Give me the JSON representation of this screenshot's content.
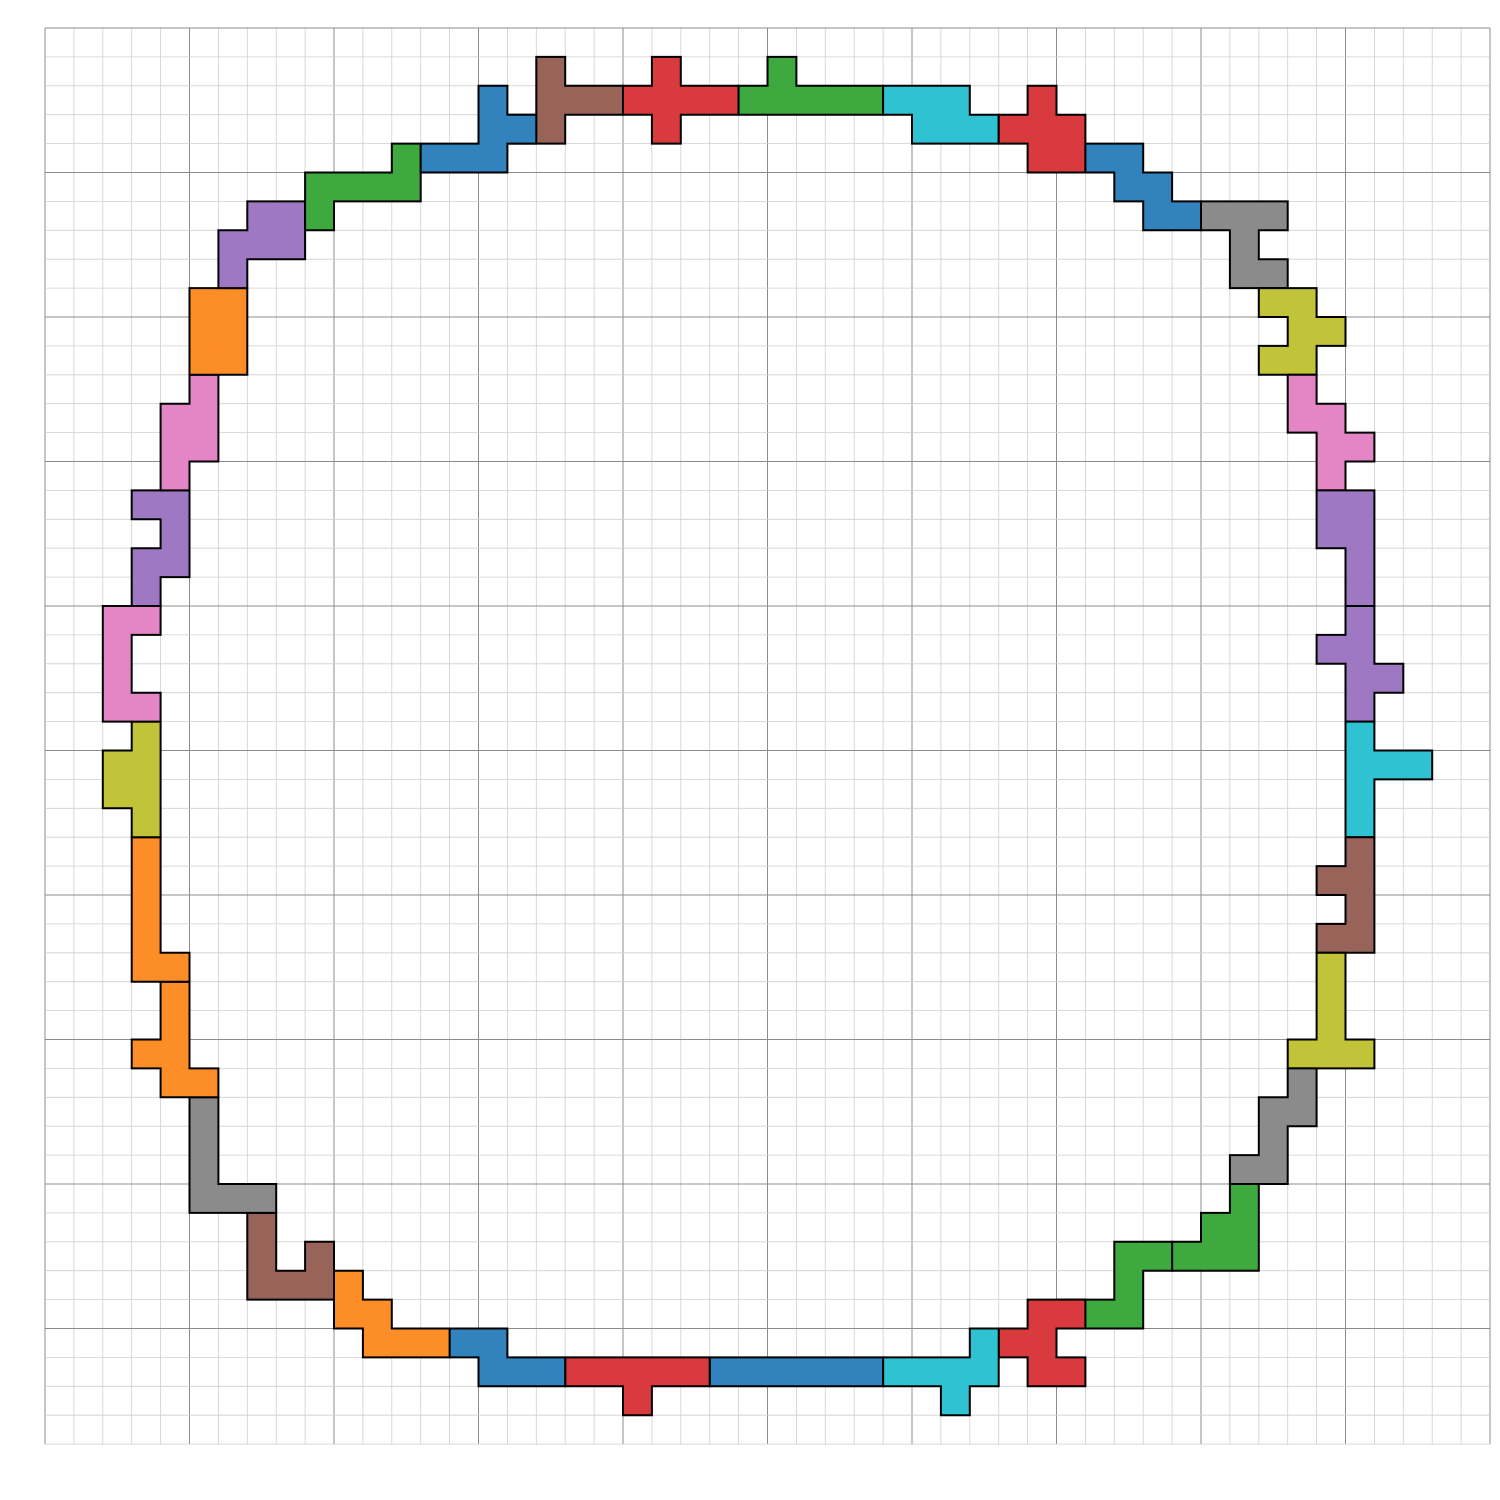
{
  "grid": {
    "cols": 50,
    "rows": 49,
    "major_every": 5
  },
  "colors": {
    "blue": "#3282bd",
    "orange": "#fd8d26",
    "green": "#3ea93e",
    "red": "#d83a3d",
    "purple": "#9e78c3",
    "brown": "#986459",
    "pink": "#e485c5",
    "gray": "#8b8b8b",
    "olive": "#c1c339",
    "cyan": "#2ec2d2"
  },
  "pieces": [
    {
      "color": "brown",
      "cells": [
        [
          17,
          1
        ],
        [
          17,
          2
        ],
        [
          16,
          3
        ],
        [
          17,
          3
        ],
        [
          18,
          2
        ],
        [
          19,
          2
        ]
      ]
    },
    {
      "color": "red",
      "cells": [
        [
          20,
          2
        ],
        [
          21,
          2
        ],
        [
          22,
          2
        ],
        [
          23,
          2
        ],
        [
          21,
          1
        ],
        [
          21,
          3
        ]
      ]
    },
    {
      "color": "green",
      "cells": [
        [
          24,
          2
        ],
        [
          25,
          2
        ],
        [
          26,
          2
        ],
        [
          27,
          2
        ],
        [
          28,
          2
        ],
        [
          25,
          1
        ]
      ]
    },
    {
      "color": "cyan",
      "cells": [
        [
          29,
          2
        ],
        [
          30,
          2
        ],
        [
          31,
          2
        ],
        [
          30,
          3
        ],
        [
          31,
          3
        ],
        [
          32,
          3
        ]
      ]
    },
    {
      "color": "red",
      "cells": [
        [
          34,
          2
        ],
        [
          33,
          3
        ],
        [
          34,
          3
        ],
        [
          35,
          3
        ],
        [
          34,
          4
        ],
        [
          35,
          4
        ]
      ]
    },
    {
      "color": "blue",
      "cells": [
        [
          36,
          4
        ],
        [
          37,
          4
        ],
        [
          37,
          5
        ],
        [
          38,
          5
        ],
        [
          38,
          6
        ],
        [
          39,
          6
        ]
      ]
    },
    {
      "color": "gray",
      "cells": [
        [
          40,
          6
        ],
        [
          41,
          6
        ],
        [
          42,
          6
        ],
        [
          41,
          7
        ],
        [
          41,
          8
        ],
        [
          42,
          8
        ]
      ]
    },
    {
      "color": "olive",
      "cells": [
        [
          42,
          9
        ],
        [
          43,
          9
        ],
        [
          43,
          10
        ],
        [
          44,
          10
        ],
        [
          42,
          11
        ],
        [
          43,
          11
        ]
      ]
    },
    {
      "color": "pink",
      "cells": [
        [
          43,
          12
        ],
        [
          43,
          13
        ],
        [
          44,
          13
        ],
        [
          44,
          14
        ],
        [
          45,
          14
        ],
        [
          44,
          15
        ]
      ]
    },
    {
      "color": "purple",
      "cells": [
        [
          44,
          16
        ],
        [
          45,
          16
        ],
        [
          44,
          17
        ],
        [
          45,
          17
        ],
        [
          45,
          18
        ],
        [
          45,
          19
        ]
      ]
    },
    {
      "color": "purple",
      "cells": [
        [
          45,
          20
        ],
        [
          44,
          21
        ],
        [
          45,
          21
        ],
        [
          45,
          22
        ],
        [
          46,
          22
        ],
        [
          45,
          23
        ]
      ]
    },
    {
      "color": "cyan",
      "cells": [
        [
          45,
          24
        ],
        [
          45,
          25
        ],
        [
          46,
          25
        ],
        [
          47,
          25
        ],
        [
          45,
          26
        ],
        [
          45,
          27
        ]
      ]
    },
    {
      "color": "brown",
      "cells": [
        [
          45,
          28
        ],
        [
          44,
          29
        ],
        [
          45,
          29
        ],
        [
          45,
          30
        ],
        [
          44,
          31
        ],
        [
          45,
          31
        ]
      ]
    },
    {
      "color": "olive",
      "cells": [
        [
          44,
          32
        ],
        [
          44,
          33
        ],
        [
          44,
          34
        ],
        [
          43,
          35
        ],
        [
          44,
          35
        ],
        [
          45,
          35
        ]
      ]
    },
    {
      "color": "gray",
      "cells": [
        [
          43,
          36
        ],
        [
          42,
          37
        ],
        [
          43,
          37
        ],
        [
          42,
          38
        ],
        [
          41,
          39
        ],
        [
          42,
          39
        ]
      ]
    },
    {
      "color": "green",
      "cells": [
        [
          41,
          40
        ],
        [
          40,
          41
        ],
        [
          41,
          41
        ],
        [
          39,
          42
        ],
        [
          40,
          42
        ],
        [
          41,
          42
        ]
      ]
    },
    {
      "color": "green",
      "cells": [
        [
          37,
          42
        ],
        [
          38,
          42
        ],
        [
          37,
          43
        ],
        [
          36,
          44
        ],
        [
          37,
          44
        ],
        [
          35,
          44
        ]
      ]
    },
    {
      "color": "red",
      "cells": [
        [
          34,
          44
        ],
        [
          33,
          45
        ],
        [
          34,
          45
        ],
        [
          34,
          46
        ],
        [
          35,
          44
        ],
        [
          35,
          46
        ]
      ]
    },
    {
      "color": "cyan",
      "cells": [
        [
          29,
          46
        ],
        [
          30,
          46
        ],
        [
          31,
          46
        ],
        [
          32,
          46
        ],
        [
          32,
          45
        ],
        [
          31,
          47
        ]
      ]
    },
    {
      "color": "blue",
      "cells": [
        [
          23,
          46
        ],
        [
          24,
          46
        ],
        [
          25,
          46
        ],
        [
          26,
          46
        ],
        [
          27,
          46
        ],
        [
          28,
          46
        ]
      ]
    },
    {
      "color": "red",
      "cells": [
        [
          18,
          46
        ],
        [
          19,
          46
        ],
        [
          20,
          46
        ],
        [
          21,
          46
        ],
        [
          22,
          46
        ],
        [
          20,
          47
        ]
      ]
    },
    {
      "color": "blue",
      "cells": [
        [
          14,
          45
        ],
        [
          15,
          45
        ],
        [
          15,
          46
        ],
        [
          16,
          46
        ],
        [
          17,
          46
        ],
        [
          14,
          45
        ]
      ]
    },
    {
      "color": "orange",
      "cells": [
        [
          10,
          43
        ],
        [
          10,
          44
        ],
        [
          11,
          44
        ],
        [
          11,
          45
        ],
        [
          12,
          45
        ],
        [
          13,
          45
        ]
      ]
    },
    {
      "color": "brown",
      "cells": [
        [
          7,
          41
        ],
        [
          7,
          42
        ],
        [
          7,
          43
        ],
        [
          8,
          43
        ],
        [
          9,
          43
        ],
        [
          9,
          42
        ]
      ]
    },
    {
      "color": "gray",
      "cells": [
        [
          5,
          37
        ],
        [
          5,
          38
        ],
        [
          5,
          39
        ],
        [
          5,
          40
        ],
        [
          6,
          40
        ],
        [
          7,
          40
        ]
      ]
    },
    {
      "color": "orange",
      "cells": [
        [
          4,
          33
        ],
        [
          4,
          34
        ],
        [
          3,
          35
        ],
        [
          4,
          35
        ],
        [
          4,
          36
        ],
        [
          5,
          36
        ]
      ]
    },
    {
      "color": "orange",
      "cells": [
        [
          3,
          28
        ],
        [
          3,
          29
        ],
        [
          3,
          30
        ],
        [
          3,
          31
        ],
        [
          3,
          32
        ],
        [
          4,
          32
        ]
      ]
    },
    {
      "color": "olive",
      "cells": [
        [
          3,
          24
        ],
        [
          2,
          25
        ],
        [
          3,
          25
        ],
        [
          2,
          26
        ],
        [
          3,
          26
        ],
        [
          3,
          27
        ]
      ]
    },
    {
      "color": "pink",
      "cells": [
        [
          2,
          20
        ],
        [
          3,
          20
        ],
        [
          2,
          21
        ],
        [
          2,
          22
        ],
        [
          2,
          23
        ],
        [
          3,
          23
        ]
      ]
    },
    {
      "color": "purple",
      "cells": [
        [
          3,
          16
        ],
        [
          4,
          16
        ],
        [
          4,
          17
        ],
        [
          3,
          18
        ],
        [
          4,
          18
        ],
        [
          3,
          19
        ]
      ]
    },
    {
      "color": "pink",
      "cells": [
        [
          5,
          12
        ],
        [
          4,
          13
        ],
        [
          5,
          13
        ],
        [
          4,
          14
        ],
        [
          5,
          14
        ],
        [
          4,
          15
        ]
      ]
    },
    {
      "color": "orange",
      "cells": [
        [
          5,
          9
        ],
        [
          6,
          9
        ],
        [
          5,
          10
        ],
        [
          6,
          10
        ],
        [
          5,
          11
        ],
        [
          6,
          11
        ]
      ]
    },
    {
      "color": "purple",
      "cells": [
        [
          7,
          6
        ],
        [
          8,
          6
        ],
        [
          6,
          7
        ],
        [
          7,
          7
        ],
        [
          8,
          7
        ],
        [
          6,
          8
        ]
      ]
    },
    {
      "color": "green",
      "cells": [
        [
          12,
          4
        ],
        [
          9,
          5
        ],
        [
          10,
          5
        ],
        [
          11,
          5
        ],
        [
          12,
          5
        ],
        [
          9,
          6
        ]
      ]
    },
    {
      "color": "blue",
      "cells": [
        [
          15,
          2
        ],
        [
          15,
          3
        ],
        [
          16,
          3
        ],
        [
          13,
          4
        ],
        [
          14,
          4
        ],
        [
          15,
          4
        ]
      ]
    }
  ]
}
